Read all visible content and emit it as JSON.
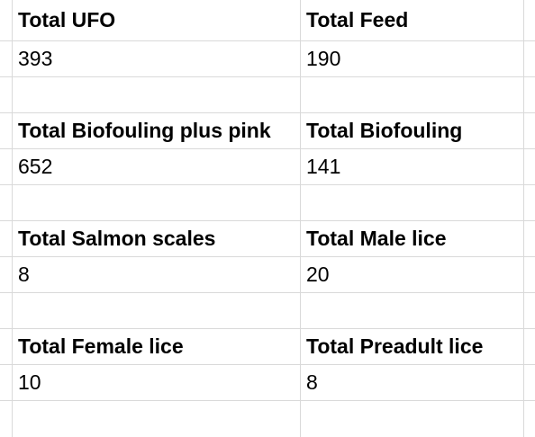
{
  "blocks": [
    {
      "left": {
        "header": "Total UFO",
        "value": "393"
      },
      "right": {
        "header": "Total Feed",
        "value": "190"
      }
    },
    {
      "left": {
        "header": "Total Biofouling plus pink",
        "value": "652"
      },
      "right": {
        "header": "Total Biofouling",
        "value": "141"
      }
    },
    {
      "left": {
        "header": "Total Salmon scales",
        "value": "8"
      },
      "right": {
        "header": "Total Male lice",
        "value": "20"
      }
    },
    {
      "left": {
        "header": "Total Female lice",
        "value": "10"
      },
      "right": {
        "header": "Total Preadult lice",
        "value": "8"
      }
    }
  ]
}
